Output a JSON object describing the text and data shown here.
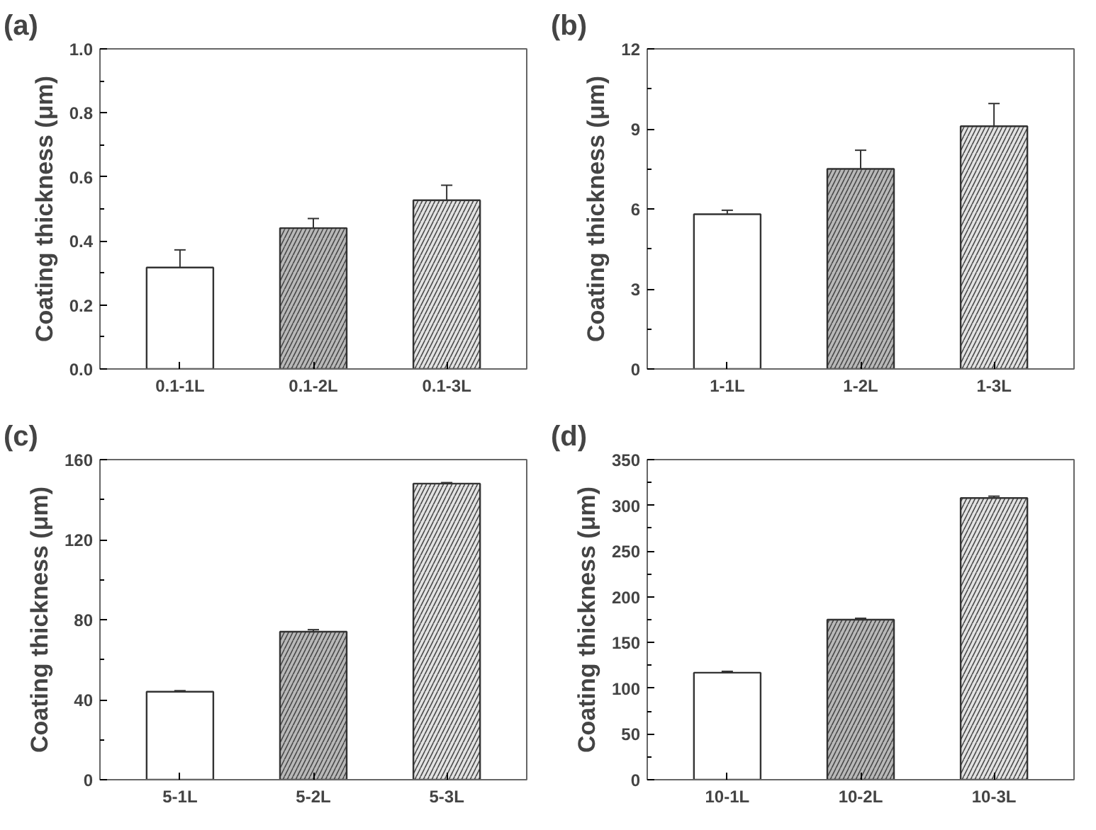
{
  "chart_data": [
    {
      "type": "bar",
      "title": "(a)",
      "ylabel": "Coating thickness (μm)",
      "categories": [
        "0.1-1L",
        "0.1-2L",
        "0.1-3L"
      ],
      "values": [
        0.317,
        0.44,
        0.527
      ],
      "errors": [
        0.055,
        0.03,
        0.047
      ],
      "colors": [
        "#ffffff",
        "#b8b8b8",
        "#e2e2e2"
      ],
      "ylim": [
        0,
        1.0
      ],
      "yticks": [
        {
          "value": 0,
          "label": "0.0"
        },
        0.2,
        0.4,
        0.6,
        0.8,
        {
          "value": 1.0,
          "label": "1.0"
        }
      ]
    },
    {
      "type": "bar",
      "title": "(b)",
      "ylabel": "Coating thickness (μm)",
      "categories": [
        "1-1L",
        "1-2L",
        "1-3L"
      ],
      "values": [
        5.8,
        7.5,
        9.1
      ],
      "errors": [
        0.15,
        0.7,
        0.85
      ],
      "colors": [
        "#ffffff",
        "#b8b8b8",
        "#e2e2e2"
      ],
      "ylim": [
        0,
        12
      ],
      "yticks": [
        0,
        3,
        6,
        9,
        12
      ]
    },
    {
      "type": "bar",
      "title": "(c)",
      "ylabel": "Coating thickness (μm)",
      "categories": [
        "5-1L",
        "5-2L",
        "5-3L"
      ],
      "values": [
        44,
        74,
        148
      ],
      "errors": [
        0.5,
        1,
        0.5
      ],
      "colors": [
        "#ffffff",
        "#b8b8b8",
        "#e2e2e2"
      ],
      "ylim": [
        0,
        160
      ],
      "yticks": [
        0,
        40,
        80,
        120,
        160
      ]
    },
    {
      "type": "bar",
      "title": "(d)",
      "ylabel": "Coating thickness (μm)",
      "categories": [
        "10-1L",
        "10-2L",
        "10-3L"
      ],
      "values": [
        117,
        175,
        308
      ],
      "errors": [
        1.5,
        1.5,
        2
      ],
      "colors": [
        "#ffffff",
        "#b8b8b8",
        "#e2e2e2"
      ],
      "ylim": [
        0,
        350
      ],
      "yticks": [
        0,
        50,
        100,
        150,
        200,
        250,
        300,
        350
      ]
    }
  ]
}
